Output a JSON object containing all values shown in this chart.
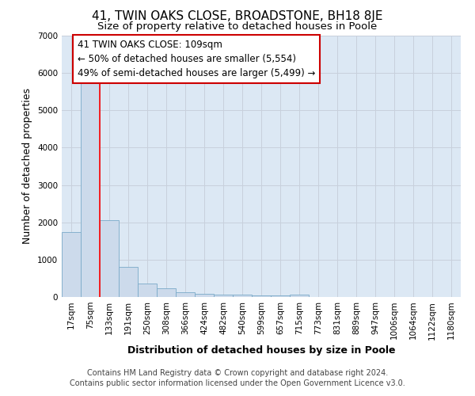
{
  "title": "41, TWIN OAKS CLOSE, BROADSTONE, BH18 8JE",
  "subtitle": "Size of property relative to detached houses in Poole",
  "xlabel": "Distribution of detached houses by size in Poole",
  "ylabel": "Number of detached properties",
  "footer_line1": "Contains HM Land Registry data © Crown copyright and database right 2024.",
  "footer_line2": "Contains public sector information licensed under the Open Government Licence v3.0.",
  "bin_labels": [
    "17sqm",
    "75sqm",
    "133sqm",
    "191sqm",
    "250sqm",
    "308sqm",
    "366sqm",
    "424sqm",
    "482sqm",
    "540sqm",
    "599sqm",
    "657sqm",
    "715sqm",
    "773sqm",
    "831sqm",
    "889sqm",
    "947sqm",
    "1006sqm",
    "1064sqm",
    "1122sqm",
    "1180sqm"
  ],
  "bar_values": [
    1750,
    5750,
    2050,
    800,
    370,
    230,
    120,
    90,
    60,
    55,
    40,
    45,
    60,
    5,
    5,
    5,
    5,
    5,
    5,
    5,
    5
  ],
  "bar_color": "#ccdaeb",
  "bar_edge_color": "#7aaac8",
  "grid_color": "#c8d0dc",
  "bg_color": "#dce8f4",
  "annotation_box_edgecolor": "#cc0000",
  "annotation_text_line1": "41 TWIN OAKS CLOSE: 109sqm",
  "annotation_text_line2": "← 50% of detached houses are smaller (5,554)",
  "annotation_text_line3": "49% of semi-detached houses are larger (5,499) →",
  "redline_index": 1.5,
  "ylim": [
    0,
    7000
  ],
  "yticks": [
    0,
    1000,
    2000,
    3000,
    4000,
    5000,
    6000,
    7000
  ],
  "title_fontsize": 11,
  "subtitle_fontsize": 9.5,
  "axis_label_fontsize": 9,
  "tick_fontsize": 7.5,
  "annotation_fontsize": 8.5,
  "footer_fontsize": 7
}
